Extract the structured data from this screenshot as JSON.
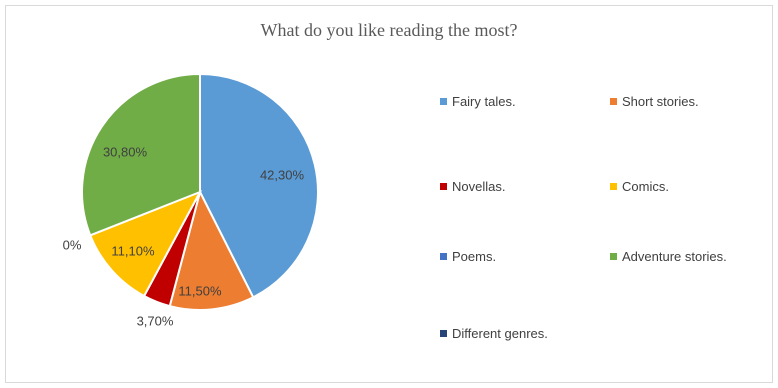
{
  "chart_data": {
    "type": "pie",
    "title": "What do you like reading the most?",
    "categories": [
      "Fairy tales.",
      "Short stories.",
      "Novellas.",
      "Comics.",
      "Poems.",
      "Adventure stories.",
      "Different genres."
    ],
    "values": [
      42.3,
      11.5,
      3.7,
      11.1,
      0,
      30.8,
      0
    ],
    "labels": [
      "42,30%",
      "11,50%",
      "3,70%",
      "11,10%",
      "0%",
      "30,80%",
      ""
    ],
    "colors": [
      "#5b9bd5",
      "#ed7d31",
      "#c00000",
      "#ffc000",
      "#4472c4",
      "#70ad47",
      "#264478"
    ],
    "legend": "right"
  }
}
